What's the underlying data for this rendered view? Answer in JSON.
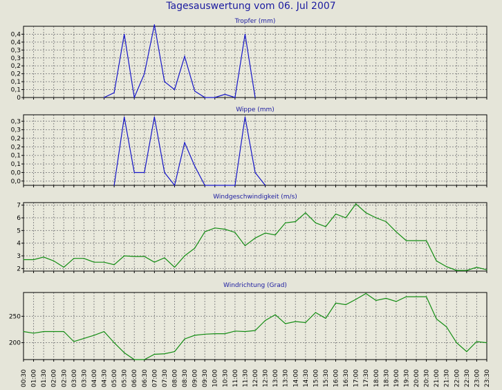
{
  "title": "Tagesauswertung vom 06. Jul 2007",
  "chart_data": [
    {
      "type": "line",
      "title": "Tropfer (mm)",
      "ylim": [
        0,
        0.45
      ],
      "yticks": [
        "0",
        "0,1",
        "0,1",
        "0,2",
        "0,2",
        "0,3",
        "0,3",
        "0,4",
        "0,4"
      ],
      "color": "#1414c8",
      "grid": true,
      "values": [
        null,
        null,
        null,
        null,
        null,
        null,
        null,
        null,
        0,
        0.03,
        0.4,
        0,
        0.15,
        0.46,
        0.1,
        0.05,
        0.26,
        0.04,
        0,
        0,
        0.02,
        0,
        0.4,
        0,
        null,
        null,
        null,
        null,
        null,
        null,
        null,
        null,
        null,
        null,
        null,
        null,
        null,
        null,
        null,
        null,
        null,
        null,
        null,
        null,
        null,
        null,
        null
      ]
    },
    {
      "type": "line",
      "title": "Wippe (mm)",
      "ylim": [
        0,
        0.33
      ],
      "yticks": [
        "0,0",
        "0,0",
        "0,1",
        "0,1",
        "0,2",
        "0,2",
        "0,3",
        "0,3"
      ],
      "color": "#1414c8",
      "grid": true,
      "values": [
        null,
        null,
        null,
        null,
        null,
        null,
        null,
        null,
        null,
        0,
        0.32,
        0.06,
        0.06,
        0.32,
        0.06,
        0,
        0.2,
        0.09,
        0,
        0,
        0,
        0,
        0.32,
        0.06,
        0,
        null,
        null,
        null,
        null,
        null,
        null,
        null,
        null,
        null,
        null,
        null,
        null,
        null,
        null,
        null,
        null,
        null,
        null,
        null,
        null,
        null,
        null
      ]
    },
    {
      "type": "line",
      "title": "Windgeschwindigkeit (m/s)",
      "ylim": [
        1.8,
        7.2
      ],
      "yticks": [
        "2",
        "3",
        "4",
        "5",
        "6",
        "7"
      ],
      "color": "#128c12",
      "grid": true,
      "values": [
        2.7,
        2.7,
        2.9,
        2.6,
        2.1,
        2.8,
        2.8,
        2.5,
        2.5,
        2.3,
        3.0,
        2.95,
        2.95,
        2.5,
        2.85,
        2.1,
        3.0,
        3.6,
        4.9,
        5.2,
        5.1,
        4.85,
        3.8,
        4.4,
        4.8,
        4.65,
        5.6,
        5.7,
        6.4,
        5.6,
        5.3,
        6.3,
        6.0,
        7.1,
        6.4,
        6.0,
        5.7,
        4.9,
        4.2,
        4.2,
        4.2,
        2.6,
        2.15,
        1.85,
        1.85,
        2.1,
        1.9
      ]
    },
    {
      "type": "line",
      "title": "Windrichtung (Grad)",
      "ylim": [
        168,
        295
      ],
      "yticks": [
        "200",
        "250"
      ],
      "color": "#128c12",
      "grid": true,
      "values": [
        221,
        218,
        221,
        221,
        221,
        202,
        208,
        214,
        221,
        200,
        181,
        168,
        168,
        178,
        179,
        183,
        207,
        214,
        216,
        217,
        217,
        222,
        221,
        223,
        242,
        253,
        236,
        240,
        238,
        257,
        246,
        275,
        272,
        282,
        293,
        280,
        284,
        278,
        287,
        287,
        287,
        245,
        230,
        200,
        183,
        202,
        200
      ]
    }
  ],
  "x_labels": [
    "00:30",
    "01:00",
    "01:30",
    "02:00",
    "02:30",
    "03:00",
    "03:30",
    "04:00",
    "04:30",
    "05:00",
    "05:30",
    "06:00",
    "06:30",
    "07:00",
    "07:30",
    "08:00",
    "08:30",
    "09:00",
    "09:30",
    "10:00",
    "10:30",
    "11:00",
    "11:30",
    "12:00",
    "12:30",
    "13:00",
    "13:30",
    "14:00",
    "14:30",
    "15:00",
    "15:30",
    "16:00",
    "16:30",
    "17:00",
    "17:30",
    "18:00",
    "18:30",
    "19:00",
    "19:30",
    "20:00",
    "20:30",
    "21:00",
    "21:30",
    "22:00",
    "22:30",
    "23:00",
    "23:30"
  ]
}
